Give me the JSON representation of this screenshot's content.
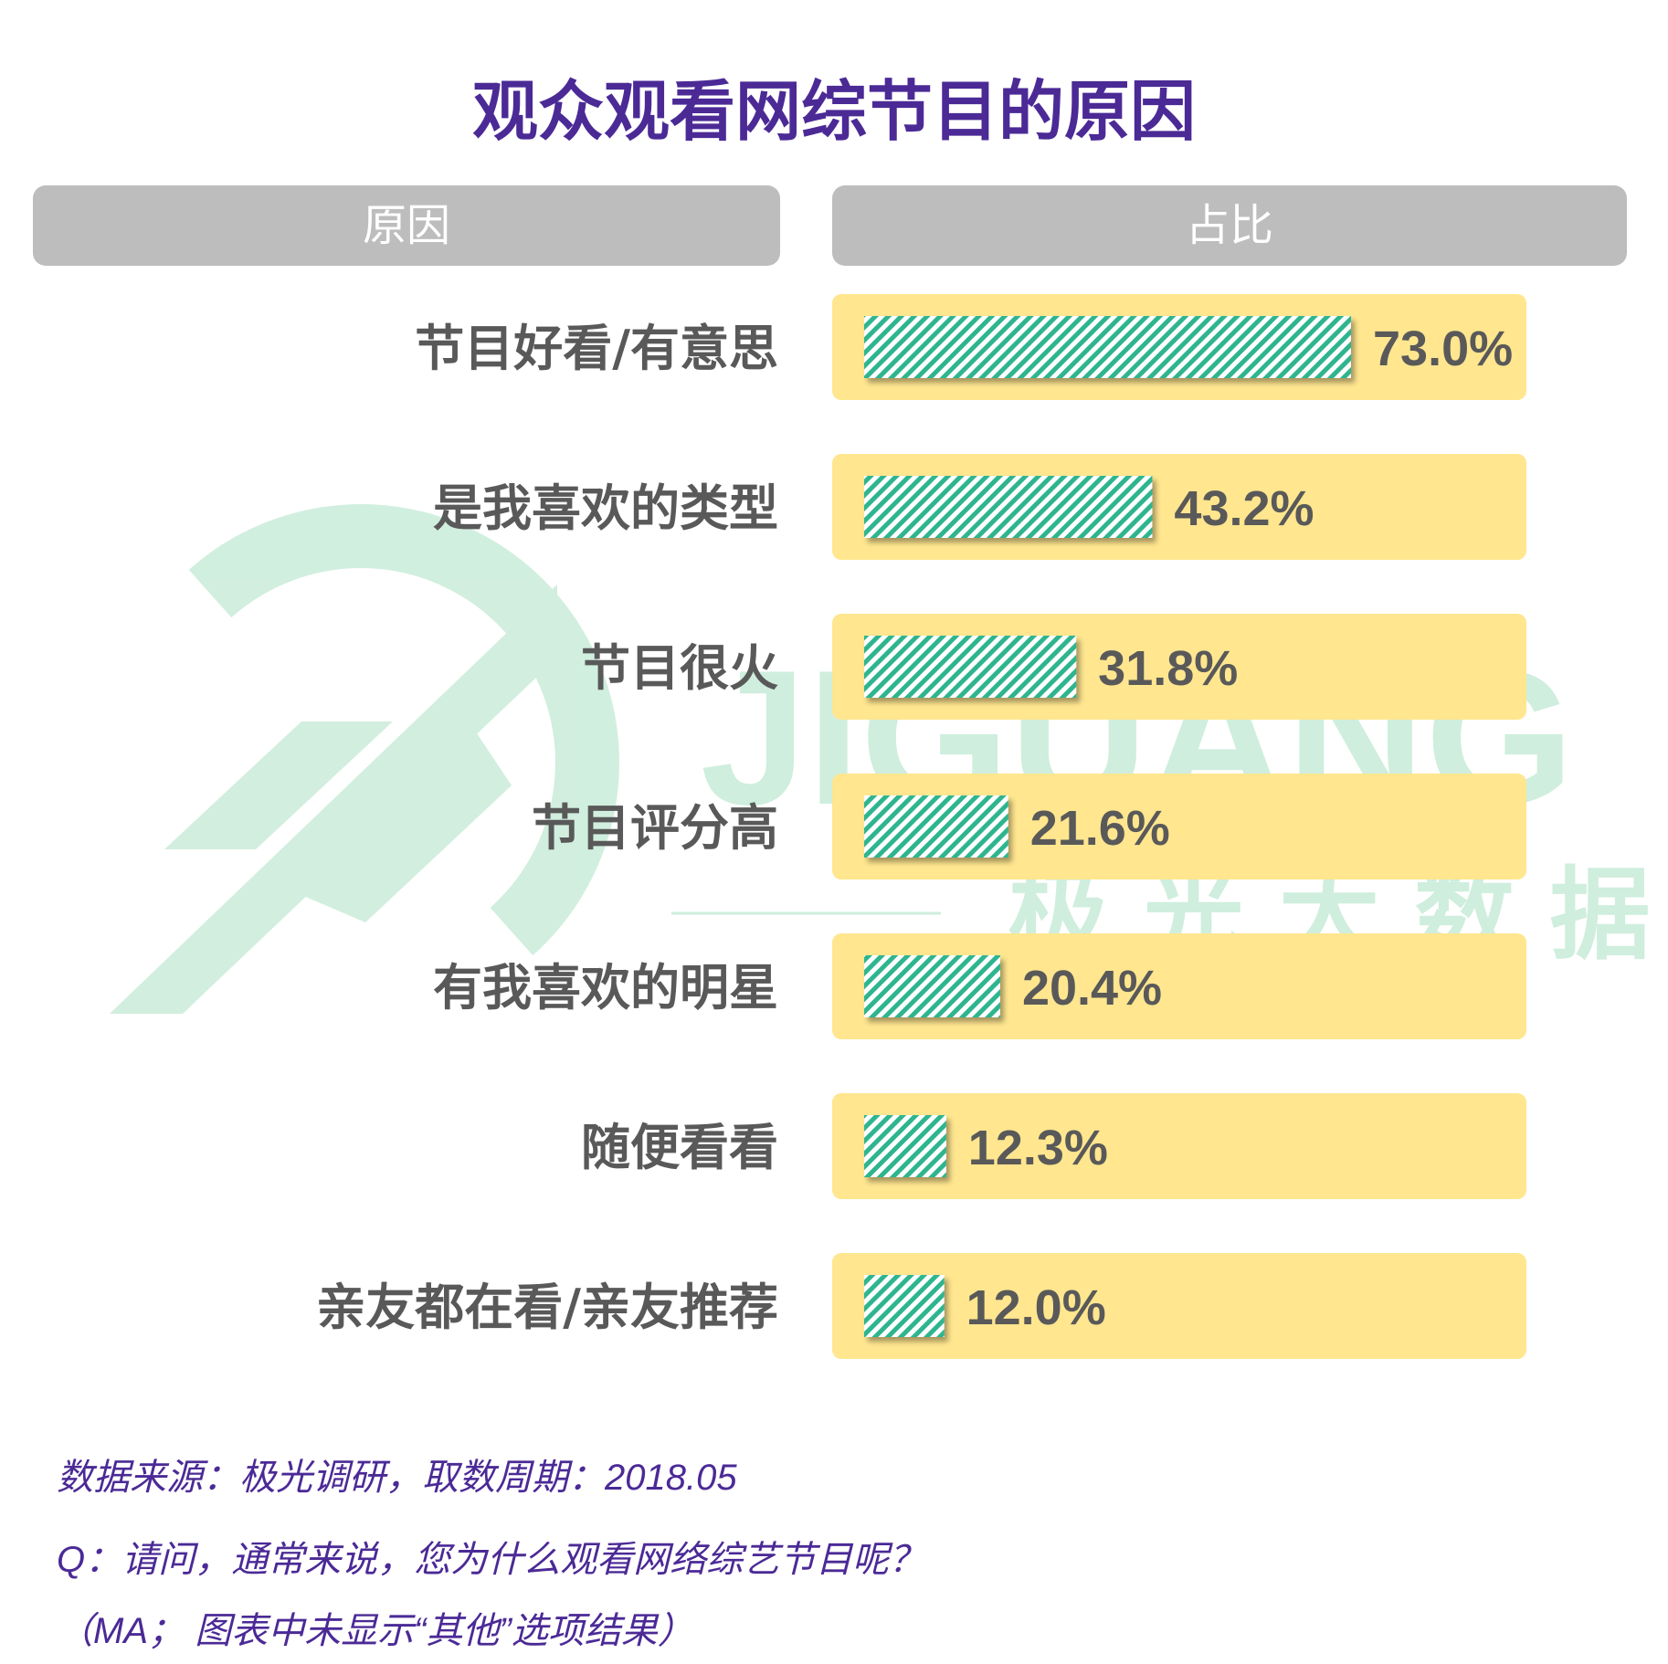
{
  "colors": {
    "title": "#4b2a96",
    "header_bg": "#bdbdbd",
    "header_text": "#ffffff",
    "category_text": "#595959",
    "value_text": "#595959",
    "track": "#ffe68f",
    "bar_stripe": "#2db58f",
    "footer_text": "#4b2a96",
    "watermark": "#cfeedd"
  },
  "header": {
    "reason_label": "原因",
    "share_label": "占比"
  },
  "watermark": {
    "brand_en": "JIGUANG",
    "brand_cn": "极 光 大 数 据"
  },
  "chart_data": {
    "type": "bar",
    "orientation": "horizontal",
    "title": "观众观看网综节目的原因",
    "categories": [
      "节目好看/有意思",
      "是我喜欢的类型",
      "节目很火",
      "节目评分高",
      "有我喜欢的明星",
      "随便看看",
      "亲友都在看/亲友推荐"
    ],
    "values": [
      73.0,
      43.2,
      31.8,
      21.6,
      20.4,
      12.3,
      12.0
    ],
    "value_labels": [
      "73.0%",
      "43.2%",
      "31.8%",
      "21.6%",
      "20.4%",
      "12.3%",
      "12.0%"
    ],
    "unit": "%",
    "xlim": [
      0,
      100
    ],
    "grid": false,
    "legend": "none"
  },
  "footer": {
    "source": "数据来源：极光调研，取数周期：2018.05",
    "question": "Q：请问，通常来说，您为什么观看网络综艺节目呢？",
    "note": "（MA； 图表中未显示“其他”选项结果）"
  }
}
